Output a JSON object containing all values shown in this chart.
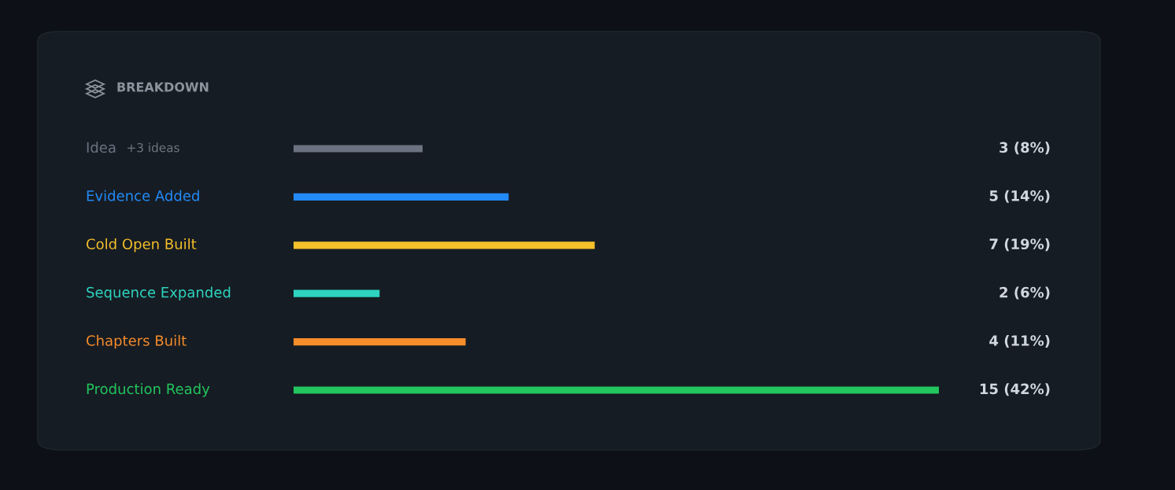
{
  "chart_data": {
    "type": "bar",
    "orientation": "horizontal",
    "title": "BREAKDOWN",
    "categories": [
      "Idea",
      "Evidence Added",
      "Cold Open Built",
      "Sequence Expanded",
      "Chapters Built",
      "Production Ready"
    ],
    "values": [
      3,
      5,
      7,
      2,
      4,
      15
    ],
    "colors": [
      "#6b7280",
      "#2389f5",
      "#f5c02a",
      "#2dd4bf",
      "#f78c2a",
      "#22c55e"
    ],
    "value_labels": [
      "3 (8%)",
      "5 (14%)",
      "7 (19%)",
      "2 (6%)",
      "4 (11%)",
      "15 (42%)"
    ],
    "annotations": [
      "+3 ideas"
    ]
  }
}
